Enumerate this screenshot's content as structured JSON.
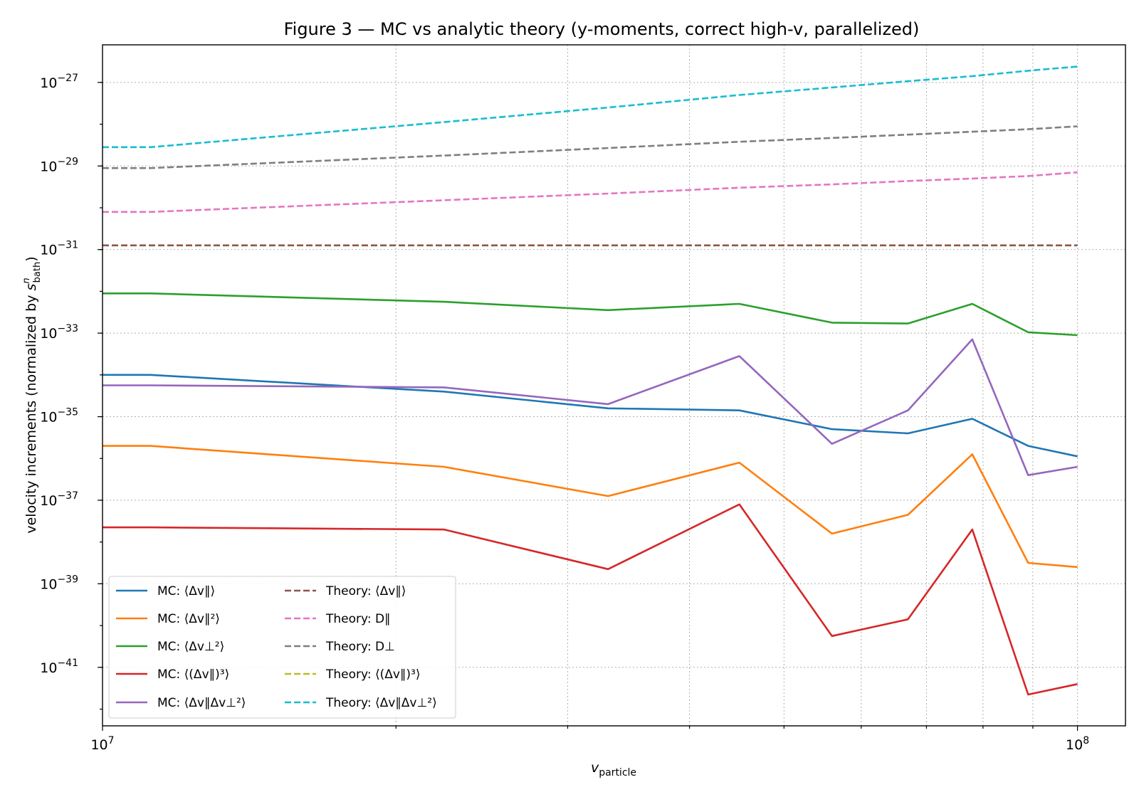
{
  "chart_data": {
    "type": "line",
    "title": "Figure 3 — MC vs analytic theory (y-moments, correct high-v, parallelized)",
    "xlabel": "v_particle",
    "ylabel": "velocity increments (normalized by s_bath^n)",
    "xscale": "log",
    "yscale": "log",
    "xlim": [
      10000000,
      112000000
    ],
    "ylim_exponent": [
      -42.4,
      -26.1
    ],
    "x_ticks": [
      {
        "value": 10000000,
        "label": "10",
        "exp": "7"
      },
      {
        "value": 100000000,
        "label": "10",
        "exp": "8"
      }
    ],
    "y_ticks": [
      {
        "exp": -27,
        "label": "10",
        "sup": "−27"
      },
      {
        "exp": -29,
        "label": "10",
        "sup": "−29"
      },
      {
        "exp": -31,
        "label": "10",
        "sup": "−31"
      },
      {
        "exp": -33,
        "label": "10",
        "sup": "−33"
      },
      {
        "exp": -35,
        "label": "10",
        "sup": "−35"
      },
      {
        "exp": -37,
        "label": "10",
        "sup": "−37"
      },
      {
        "exp": -39,
        "label": "10",
        "sup": "−39"
      },
      {
        "exp": -41,
        "label": "10",
        "sup": "−41"
      }
    ],
    "grid": true,
    "legend": "lower-left",
    "x": [
      10000000,
      11200000,
      22400000,
      33000000,
      45000000,
      56000000,
      67000000,
      78000000,
      89000000,
      100000000
    ],
    "series": [
      {
        "name": "MC: ⟨Δv∥⟩",
        "color": "#1f77b4",
        "dash": false,
        "log10_y": [
          -34.0,
          -34.0,
          -34.4,
          -34.8,
          -34.85,
          -35.3,
          -35.4,
          -35.05,
          -35.7,
          -35.95
        ]
      },
      {
        "name": "MC: ⟨Δv∥²⟩",
        "color": "#ff7f0e",
        "dash": false,
        "log10_y": [
          -35.7,
          -35.7,
          -36.2,
          -36.9,
          -36.1,
          -37.8,
          -37.35,
          -35.9,
          -38.5,
          -38.6
        ]
      },
      {
        "name": "MC: ⟨Δv⊥²⟩",
        "color": "#2ca02c",
        "dash": false,
        "log10_y": [
          -32.05,
          -32.05,
          -32.25,
          -32.45,
          -32.3,
          -32.75,
          -32.77,
          -32.3,
          -32.98,
          -33.05
        ]
      },
      {
        "name": "MC: ⟨(Δv∥)³⟩",
        "color": "#d62728",
        "dash": false,
        "log10_y": [
          -37.65,
          -37.65,
          -37.7,
          -38.65,
          -37.1,
          -40.25,
          -39.85,
          -37.7,
          -41.65,
          -41.4
        ]
      },
      {
        "name": "MC: ⟨Δv∥Δv⊥²⟩",
        "color": "#9467bd",
        "dash": false,
        "log10_y": [
          -34.25,
          -34.25,
          -34.3,
          -34.7,
          -33.55,
          -35.65,
          -34.85,
          -33.15,
          -36.4,
          -36.2
        ]
      },
      {
        "name": "Theory: ⟨Δv∥⟩",
        "color": "#8c564b",
        "dash": true,
        "log10_y": [
          -30.9,
          -30.9,
          -30.9,
          -30.9,
          -30.9,
          -30.9,
          -30.9,
          -30.9,
          -30.9,
          -30.9
        ]
      },
      {
        "name": "Theory: D∥",
        "color": "#e377c2",
        "dash": true,
        "log10_y": [
          -30.1,
          -30.1,
          -29.82,
          -29.66,
          -29.52,
          -29.44,
          -29.36,
          -29.3,
          -29.24,
          -29.15
        ]
      },
      {
        "name": "Theory: D⊥",
        "color": "#7f7f7f",
        "dash": true,
        "log10_y": [
          -29.05,
          -29.05,
          -28.75,
          -28.57,
          -28.42,
          -28.33,
          -28.25,
          -28.18,
          -28.12,
          -28.05
        ]
      },
      {
        "name": "Theory: ⟨(Δv∥)³⟩",
        "color": "#bcbd22",
        "dash": true,
        "log10_y": []
      },
      {
        "name": "Theory: ⟨Δv∥Δv⊥²⟩",
        "color": "#17becf",
        "dash": true,
        "log10_y": [
          -28.55,
          -28.55,
          -27.95,
          -27.6,
          -27.3,
          -27.12,
          -26.97,
          -26.85,
          -26.72,
          -26.62
        ]
      }
    ],
    "legend_columns": [
      {
        "label_prefix": "MC: ",
        "items": [
          {
            "series": 0,
            "parts": [
              "⟨Δ",
              "v",
              "∥",
              "⟩"
            ]
          },
          {
            "series": 1
          },
          {
            "series": 2
          },
          {
            "series": 3
          },
          {
            "series": 4
          }
        ]
      }
    ]
  }
}
